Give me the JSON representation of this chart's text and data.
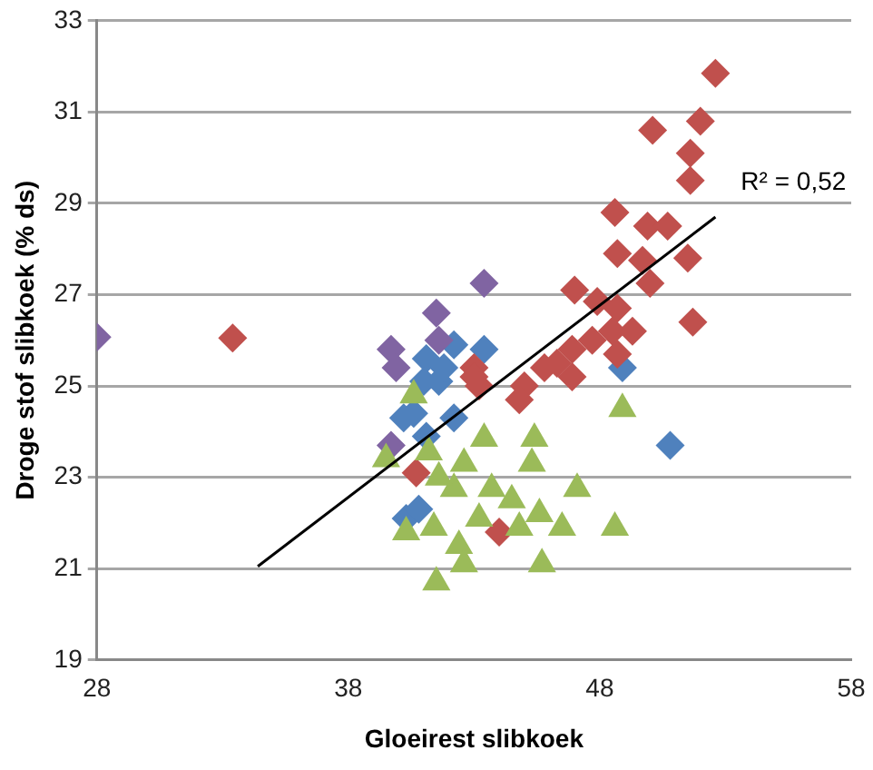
{
  "chart_data": {
    "type": "scatter",
    "xlabel": "Gloeirest slibkoek",
    "ylabel": "Droge stof slibkoek (% ds)",
    "xlim": [
      28,
      58
    ],
    "xticks": [
      28,
      38,
      48,
      58
    ],
    "ylim": [
      19,
      33
    ],
    "yticks": [
      19,
      21,
      23,
      25,
      27,
      29,
      31,
      33
    ],
    "grid": "y",
    "legend": false,
    "annotations": [
      {
        "text": "R² = 0,52",
        "x": 52.6,
        "y": 28.7
      }
    ],
    "series": [
      {
        "color": "#4f81bd",
        "marker": "diamond",
        "x": [
          41.1,
          42.2,
          41.6,
          40.6,
          42.2,
          41.1,
          40.3,
          40.8,
          41.0,
          41.8,
          40.2,
          48.9,
          50.8,
          43.4
        ],
        "values": [
          25.6,
          25.9,
          25.1,
          24.4,
          24.3,
          23.9,
          22.1,
          22.3,
          25.1,
          25.4,
          24.3,
          25.4,
          23.7,
          25.8
        ]
      },
      {
        "color": "#c0504d",
        "marker": "diamond",
        "x": [
          52.6,
          50.1,
          52.0,
          51.6,
          51.6,
          48.6,
          49.9,
          50.7,
          48.7,
          51.5,
          49.7,
          47.0,
          50.0,
          51.7,
          47.9,
          48.7,
          48.5,
          49.3,
          47.7,
          46.9,
          48.7,
          46.3,
          45.8,
          46.9,
          45.0,
          43.0,
          44.8,
          43.0,
          44.0,
          40.7,
          43.2,
          33.4
        ],
        "values": [
          31.85,
          30.6,
          30.8,
          30.1,
          29.5,
          28.8,
          28.5,
          28.5,
          27.9,
          27.8,
          27.75,
          27.1,
          27.25,
          26.4,
          26.85,
          26.7,
          26.2,
          26.2,
          26.0,
          25.8,
          25.7,
          25.5,
          25.4,
          25.2,
          25.0,
          25.4,
          24.7,
          25.2,
          21.8,
          23.1,
          25.0,
          26.05
        ]
      },
      {
        "color": "#8064a2",
        "marker": "diamond",
        "x": [
          28,
          41.5,
          39.7,
          39.9,
          39.7,
          41.6,
          43.4
        ],
        "values": [
          26.07,
          26.6,
          25.8,
          25.4,
          23.7,
          26.0,
          27.25
        ]
      },
      {
        "color": "#9bbb59",
        "marker": "triangle",
        "x": [
          40.6,
          48.9,
          45.4,
          39.5,
          43.4,
          45.3,
          41.2,
          42.6,
          47.1,
          43.7,
          44.5,
          45.6,
          42.2,
          46.5,
          48.6,
          40.3,
          41.4,
          42.4,
          45.7,
          41.5,
          42.6,
          43.2,
          44.8,
          41.6
        ],
        "values": [
          24.8,
          24.5,
          23.85,
          23.4,
          23.85,
          23.3,
          23.55,
          23.3,
          22.75,
          22.75,
          22.5,
          22.2,
          22.75,
          21.9,
          21.9,
          21.8,
          21.9,
          21.5,
          21.1,
          20.7,
          21.1,
          22.1,
          21.9,
          23.0
        ]
      },
      {
        "type": "line",
        "color": "#000000",
        "marker": "none",
        "x": [
          34.4,
          52.6
        ],
        "values": [
          21.05,
          28.7
        ]
      }
    ]
  }
}
